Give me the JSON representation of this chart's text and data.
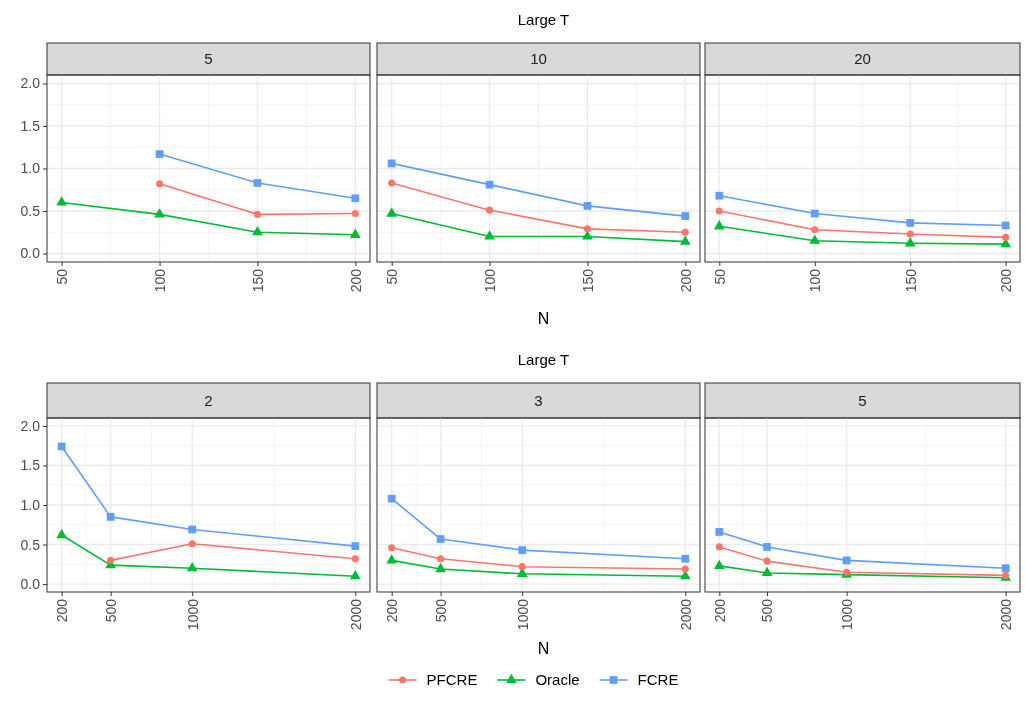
{
  "chart_data": [
    {
      "type": "line",
      "title": "5",
      "x": [
        50,
        100,
        150,
        200
      ],
      "xlim": [
        42.5,
        207.5
      ],
      "xticks": [
        50,
        100,
        150,
        200
      ],
      "ylim": [
        -0.1,
        2.1
      ],
      "yticks": [
        {
          "value": 0,
          "label": "0.0"
        },
        {
          "value": 0.5,
          "label": "0.5"
        },
        {
          "value": 1,
          "label": "1.0"
        },
        {
          "value": 1.5,
          "label": "1.5"
        },
        {
          "value": 2,
          "label": "2.0"
        }
      ],
      "grid": true,
      "series": [
        {
          "color": "#f8766d",
          "marker": "circle",
          "values": [
            null,
            0.82,
            0.46,
            0.47
          ]
        },
        {
          "color": "#00ba38",
          "marker": "triangle",
          "values": [
            0.6,
            0.46,
            0.25,
            0.22
          ]
        },
        {
          "color": "#619cff",
          "marker": "square",
          "values": [
            null,
            1.17,
            0.83,
            0.65
          ]
        }
      ]
    },
    {
      "type": "line",
      "title": "10",
      "annotations": [
        "Large T"
      ],
      "xlabel": "N",
      "x": [
        50,
        100,
        150,
        200
      ],
      "xlim": [
        42.5,
        207.5
      ],
      "xticks": [
        50,
        100,
        150,
        200
      ],
      "ylim": [
        -0.1,
        2.1
      ],
      "yticks": [
        {
          "value": 0,
          "label": null
        },
        {
          "value": 0.5,
          "label": null
        },
        {
          "value": 1,
          "label": null
        },
        {
          "value": 1.5,
          "label": null
        },
        {
          "value": 2,
          "label": null
        }
      ],
      "tick_labels": "x",
      "grid": true,
      "series": [
        {
          "color": "#f8766d",
          "marker": "circle",
          "values": [
            0.83,
            0.51,
            0.29,
            0.25
          ]
        },
        {
          "color": "#00ba38",
          "marker": "triangle",
          "values": [
            0.47,
            0.2,
            0.2,
            0.14
          ]
        },
        {
          "color": "#619cff",
          "marker": "square",
          "values": [
            1.06,
            0.81,
            0.56,
            0.44
          ]
        }
      ]
    },
    {
      "type": "line",
      "title": "20",
      "x": [
        50,
        100,
        150,
        200
      ],
      "xlim": [
        42.5,
        207.5
      ],
      "xticks": [
        50,
        100,
        150,
        200
      ],
      "ylim": [
        -0.1,
        2.1
      ],
      "yticks": [
        {
          "value": 0,
          "label": null
        },
        {
          "value": 0.5,
          "label": null
        },
        {
          "value": 1,
          "label": null
        },
        {
          "value": 1.5,
          "label": null
        },
        {
          "value": 2,
          "label": null
        }
      ],
      "tick_labels": "x",
      "grid": true,
      "series": [
        {
          "color": "#f8766d",
          "marker": "circle",
          "values": [
            0.5,
            0.28,
            0.23,
            0.19
          ]
        },
        {
          "color": "#00ba38",
          "marker": "triangle",
          "values": [
            0.32,
            0.15,
            0.12,
            0.11
          ]
        },
        {
          "color": "#619cff",
          "marker": "square",
          "values": [
            0.68,
            0.47,
            0.36,
            0.33
          ]
        }
      ]
    },
    {
      "type": "line",
      "title": "2",
      "x": [
        200,
        500,
        1000,
        2000
      ],
      "xlim": [
        110,
        2090
      ],
      "xticks": [
        200,
        500,
        1000,
        2000
      ],
      "ylim": [
        -0.1,
        2.1
      ],
      "yticks": [
        {
          "value": 0,
          "label": "0.0"
        },
        {
          "value": 0.5,
          "label": "0.5"
        },
        {
          "value": 1,
          "label": "1.0"
        },
        {
          "value": 1.5,
          "label": "1.5"
        },
        {
          "value": 2,
          "label": "2.0"
        }
      ],
      "grid": true,
      "series": [
        {
          "color": "#f8766d",
          "marker": "circle",
          "values": [
            null,
            0.3,
            0.51,
            0.32
          ]
        },
        {
          "color": "#00ba38",
          "marker": "triangle",
          "values": [
            0.62,
            0.24,
            0.2,
            0.1
          ]
        },
        {
          "color": "#619cff",
          "marker": "square",
          "values": [
            1.74,
            0.85,
            0.69,
            0.48
          ]
        }
      ]
    },
    {
      "type": "line",
      "title": "3",
      "annotations": [
        "Large T"
      ],
      "xlabel": "N",
      "legend": "bottom",
      "x": [
        200,
        500,
        1000,
        2000
      ],
      "xlim": [
        110,
        2090
      ],
      "xticks": [
        200,
        500,
        1000,
        2000
      ],
      "ylim": [
        -0.1,
        2.1
      ],
      "yticks": [
        {
          "value": 0,
          "label": null
        },
        {
          "value": 0.5,
          "label": null
        },
        {
          "value": 1,
          "label": null
        },
        {
          "value": 1.5,
          "label": null
        },
        {
          "value": 2,
          "label": null
        }
      ],
      "tick_labels": "x",
      "grid": true,
      "series": [
        {
          "name": "PFCRE",
          "color": "#f8766d",
          "marker": "circle",
          "values": [
            0.46,
            0.32,
            0.22,
            0.19
          ]
        },
        {
          "name": "Oracle",
          "color": "#00ba38",
          "marker": "triangle",
          "values": [
            0.3,
            0.19,
            0.13,
            0.1
          ]
        },
        {
          "name": "FCRE",
          "color": "#619cff",
          "marker": "square",
          "values": [
            1.08,
            0.57,
            0.43,
            0.32
          ]
        }
      ]
    },
    {
      "type": "line",
      "title": "5",
      "x": [
        200,
        500,
        1000,
        2000
      ],
      "xlim": [
        110,
        2090
      ],
      "xticks": [
        200,
        500,
        1000,
        2000
      ],
      "ylim": [
        -0.1,
        2.1
      ],
      "yticks": [
        {
          "value": 0,
          "label": null
        },
        {
          "value": 0.5,
          "label": null
        },
        {
          "value": 1,
          "label": null
        },
        {
          "value": 1.5,
          "label": null
        },
        {
          "value": 2,
          "label": null
        }
      ],
      "tick_labels": "x",
      "grid": true,
      "series": [
        {
          "color": "#f8766d",
          "marker": "circle",
          "values": [
            0.47,
            0.29,
            0.15,
            0.11
          ]
        },
        {
          "color": "#00ba38",
          "marker": "triangle",
          "values": [
            0.23,
            0.14,
            0.12,
            0.08
          ]
        },
        {
          "color": "#619cff",
          "marker": "square",
          "values": [
            0.66,
            0.47,
            0.3,
            0.2
          ]
        }
      ]
    }
  ]
}
